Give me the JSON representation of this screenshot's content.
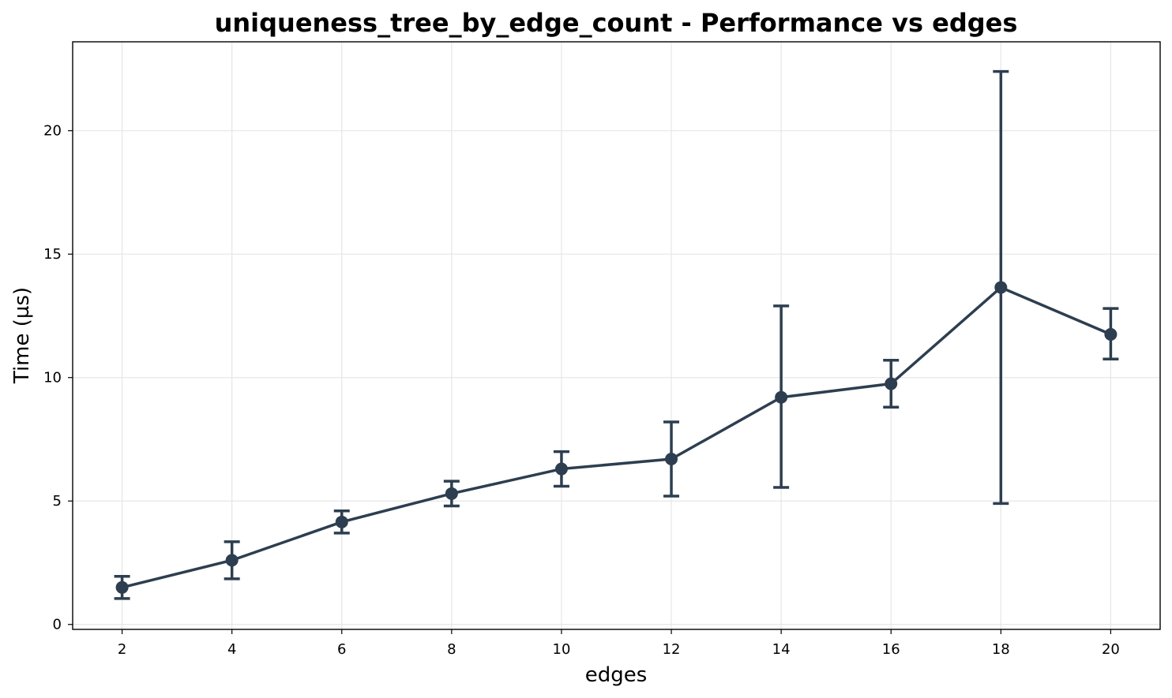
{
  "colors": {
    "series": "#2d3e50",
    "grid": "#e6e6e6",
    "axis": "#000000",
    "background": "#ffffff"
  },
  "chart_data": {
    "type": "line",
    "title": "uniqueness_tree_by_edge_count - Performance vs edges",
    "xlabel": "edges",
    "ylabel": "Time (µs)",
    "x": [
      2,
      4,
      6,
      8,
      10,
      12,
      14,
      16,
      18,
      20
    ],
    "xlim": [
      1.1,
      20.9
    ],
    "ylim": [
      -0.2,
      23.6
    ],
    "xticks": [
      2,
      4,
      6,
      8,
      10,
      12,
      14,
      16,
      18,
      20
    ],
    "yticks": [
      0,
      5,
      10,
      15,
      20
    ],
    "grid": true,
    "error_bars": true,
    "markers": true,
    "series": [
      {
        "values": [
          1.5,
          2.6,
          4.15,
          5.3,
          6.3,
          6.7,
          9.2,
          9.75,
          13.65,
          11.75
        ],
        "err_low": [
          1.05,
          1.85,
          3.7,
          4.8,
          5.6,
          5.2,
          5.55,
          8.8,
          4.9,
          10.75
        ],
        "err_high": [
          1.95,
          3.35,
          4.6,
          5.8,
          7.0,
          8.2,
          12.9,
          10.7,
          22.4,
          12.8
        ]
      }
    ]
  }
}
